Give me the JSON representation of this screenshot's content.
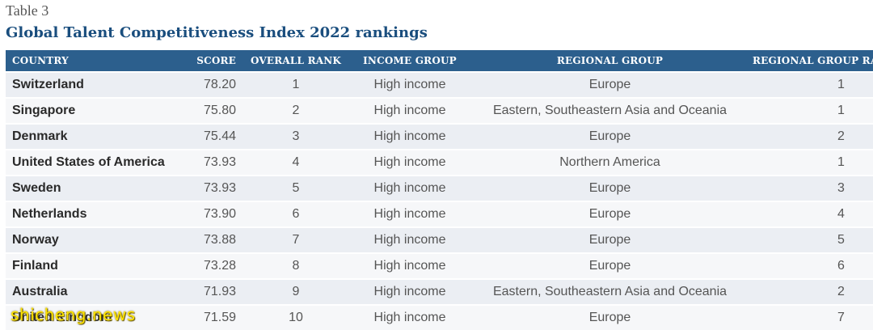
{
  "header": {
    "table_label": "Table 3",
    "title": "Global Talent Competitiveness Index 2022 rankings"
  },
  "table": {
    "columns": [
      "COUNTRY",
      "SCORE",
      "OVERALL RANK",
      "INCOME GROUP",
      "REGIONAL GROUP",
      "REGIONAL GROUP RANK"
    ],
    "rows": [
      {
        "country": "Switzerland",
        "score": "78.20",
        "rank": "1",
        "income": "High income",
        "region": "Europe",
        "region_rank": "1"
      },
      {
        "country": "Singapore",
        "score": "75.80",
        "rank": "2",
        "income": "High income",
        "region": "Eastern, Southeastern Asia and Oceania",
        "region_rank": "1"
      },
      {
        "country": "Denmark",
        "score": "75.44",
        "rank": "3",
        "income": "High income",
        "region": "Europe",
        "region_rank": "2"
      },
      {
        "country": "United States of America",
        "score": "73.93",
        "rank": "4",
        "income": "High income",
        "region": "Northern America",
        "region_rank": "1"
      },
      {
        "country": "Sweden",
        "score": "73.93",
        "rank": "5",
        "income": "High income",
        "region": "Europe",
        "region_rank": "3"
      },
      {
        "country": "Netherlands",
        "score": "73.90",
        "rank": "6",
        "income": "High income",
        "region": "Europe",
        "region_rank": "4"
      },
      {
        "country": "Norway",
        "score": "73.88",
        "rank": "7",
        "income": "High income",
        "region": "Europe",
        "region_rank": "5"
      },
      {
        "country": "Finland",
        "score": "73.28",
        "rank": "8",
        "income": "High income",
        "region": "Europe",
        "region_rank": "6"
      },
      {
        "country": "Australia",
        "score": "71.93",
        "rank": "9",
        "income": "High income",
        "region": "Eastern, Southeastern Asia and Oceania",
        "region_rank": "2"
      },
      {
        "country": "United Kingdom",
        "score": "71.59",
        "rank": "10",
        "income": "High income",
        "region": "Europe",
        "region_rank": "7"
      }
    ]
  },
  "watermark": "shicheng.news",
  "colors": {
    "header_bg": "#2c5f8d",
    "title": "#1a4e7e",
    "row_odd": "#ebeef3",
    "row_even": "#f6f7f9"
  }
}
